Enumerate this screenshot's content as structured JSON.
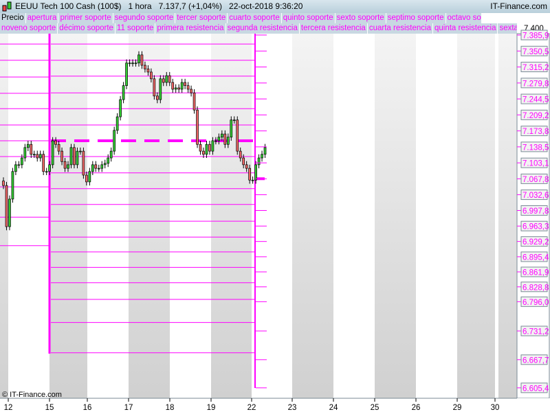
{
  "header": {
    "title": "EEUU Tech 100 Cash (100$)",
    "timeframe": "1 hora",
    "price": "7.137,7 (+1,04%)",
    "datetime": "22-oct-2018 9:36:20",
    "brand": "IT-Finance.com"
  },
  "legend_row1": [
    "Precio",
    "apertura",
    "primer soporte",
    "segundo soporte",
    "tercer soporte",
    "cuarto soporte",
    "quinto soporte",
    "sexto soporte",
    "septimo soporte",
    "octavo soporte"
  ],
  "legend_row2": [
    "noveno soporte",
    "décimo soporte",
    "11 soporte",
    "primera resistencia",
    "segunda resistencia",
    "tercera resistencia",
    "cuarta resistencia",
    "quinta resistencia",
    "sexta resist"
  ],
  "axis": {
    "top_tick": "7.400",
    "levels": [
      "7.385,9",
      "7.350,5",
      "7.315,2",
      "7.279,8",
      "7.244,5",
      "7.209,2",
      "7.173,8",
      "7.138,5",
      "7.103,1",
      "7.067,8",
      "7.032,6",
      "6.997,8",
      "6.963,3",
      "6.929,2",
      "6.895,4",
      "6.861,9",
      "6.828,8",
      "6.796,0",
      "6.731,2",
      "6.667,7",
      "6.605,4"
    ]
  },
  "x_labels": [
    "12",
    "15",
    "16",
    "17",
    "18",
    "19",
    "22",
    "23",
    "24",
    "25",
    "26",
    "29",
    "30"
  ],
  "copyright": "© IT-Finance.com",
  "colors": {
    "level": "#ff00ff",
    "up": "#33cc33",
    "down": "#ee6666"
  },
  "chart_data": {
    "type": "candlestick",
    "closes": [
      7053,
      6962,
      7023,
      7084,
      7099,
      7099,
      7114,
      7137,
      7144,
      7122,
      7122,
      7114,
      7122,
      7084,
      7084,
      7099,
      7152,
      7144,
      7129,
      7106,
      7091,
      7099,
      7137,
      7099,
      7129,
      7129,
      7076,
      7061,
      7084,
      7099,
      7091,
      7091,
      7099,
      7102,
      7114,
      7129,
      7175,
      7205,
      7243,
      7274,
      7324,
      7324,
      7324,
      7324,
      7342,
      7319,
      7311,
      7304,
      7289,
      7251,
      7243,
      7289,
      7281,
      7296,
      7281,
      7266,
      7269,
      7266,
      7281,
      7274,
      7266,
      7258,
      7220,
      7144,
      7129,
      7122,
      7144,
      7129,
      7152,
      7152,
      7160,
      7167,
      7144,
      7160,
      7198,
      7198,
      7129,
      7114,
      7099,
      7091,
      7065,
      7065,
      7099,
      7114,
      7122,
      7137
    ],
    "prev_week_levels": [
      7366,
      7330,
      7293,
      7257,
      7223,
      7187,
      7152,
      7117,
      7050,
      6983,
      6920
    ],
    "week_levels": [
      7366,
      7330,
      7295,
      7258,
      7223,
      7187,
      7117,
      7081,
      7046,
      7011,
      6974,
      6939,
      6906,
      6872,
      6838,
      6801,
      6750,
      6683
    ],
    "week_open": 7152,
    "current_open": 7068
  }
}
